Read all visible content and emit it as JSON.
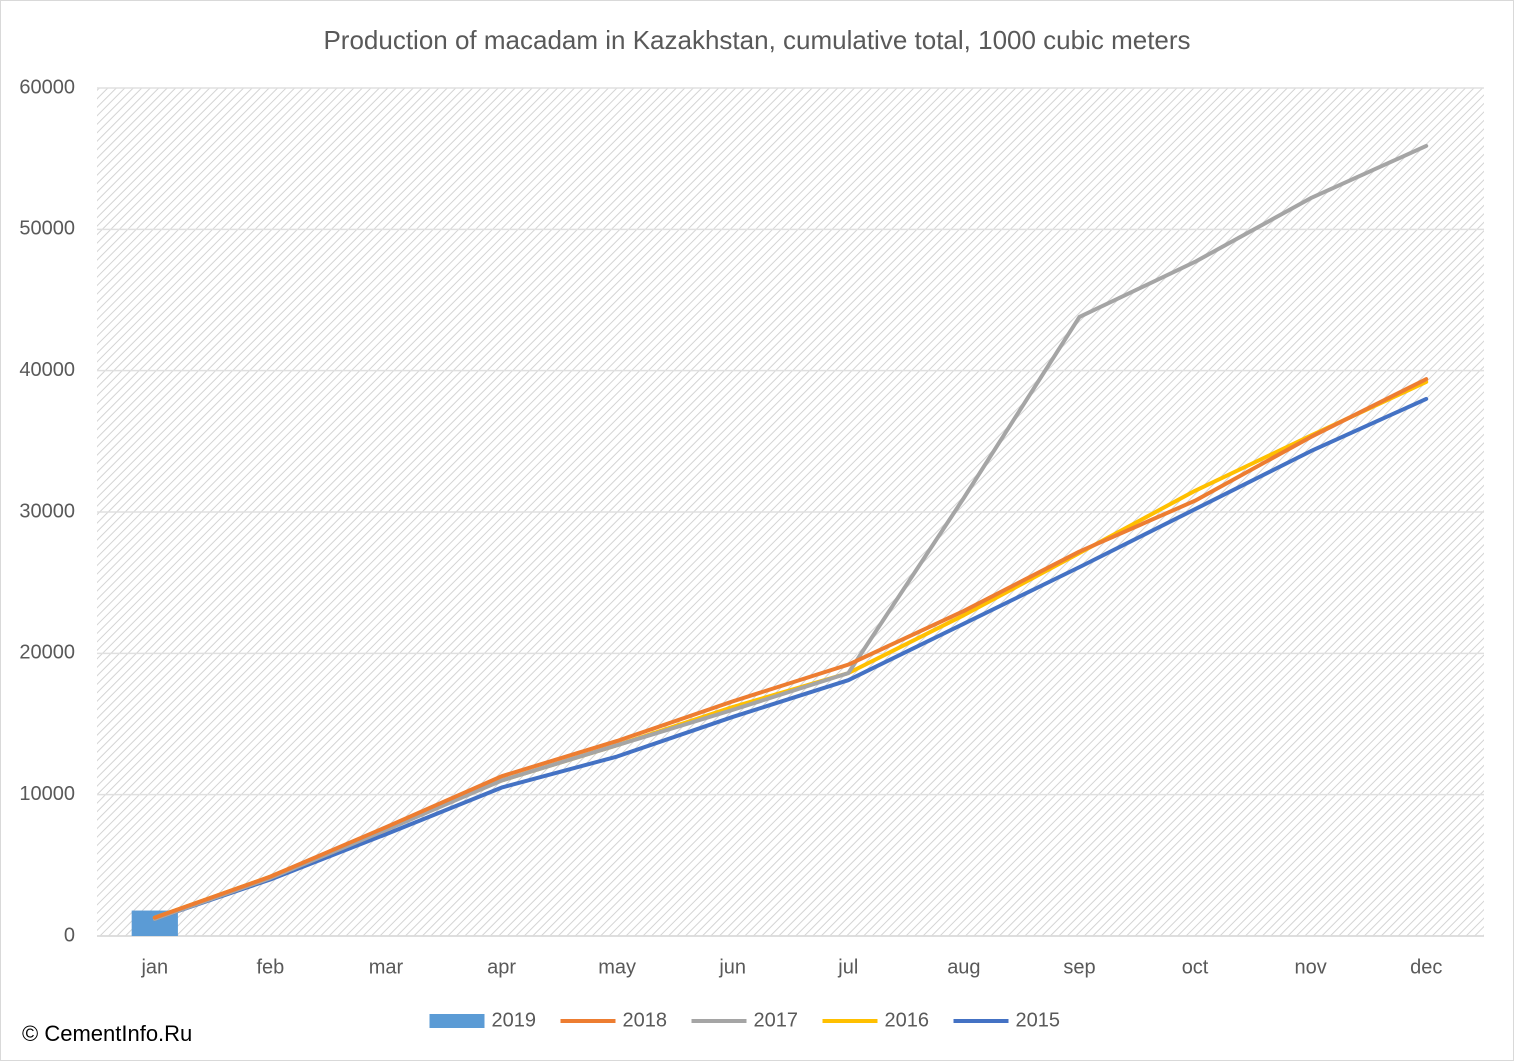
{
  "chart_data": {
    "type": "line",
    "title": "Production of macadam in Kazakhstan, cumulative total, 1000 cubic meters",
    "watermark": "© CementInfo.Ru",
    "categories": [
      "jan",
      "feb",
      "mar",
      "apr",
      "may",
      "jun",
      "jul",
      "aug",
      "sep",
      "oct",
      "nov",
      "dec"
    ],
    "series": [
      {
        "name": "2019",
        "type": "bar",
        "color": "#5b9bd5",
        "values": [
          1800,
          null,
          null,
          null,
          null,
          null,
          null,
          null,
          null,
          null,
          null,
          null
        ]
      },
      {
        "name": "2018",
        "type": "line",
        "color": "#ed7d31",
        "values": [
          1300,
          4200,
          7700,
          11300,
          13800,
          16600,
          19200,
          23000,
          27200,
          30800,
          35300,
          39400
        ]
      },
      {
        "name": "2017",
        "type": "line",
        "color": "#a5a5a5",
        "values": [
          1200,
          4100,
          7500,
          11000,
          13500,
          16000,
          18600,
          31000,
          43800,
          47700,
          52200,
          55900
        ]
      },
      {
        "name": "2016",
        "type": "line",
        "color": "#ffc000",
        "values": [
          1300,
          4200,
          7600,
          11000,
          13500,
          16200,
          18600,
          22700,
          27100,
          31500,
          35400,
          39200
        ]
      },
      {
        "name": "2015",
        "type": "line",
        "color": "#4472c4",
        "values": [
          1200,
          4000,
          7200,
          10500,
          12700,
          15500,
          18100,
          22100,
          26100,
          30200,
          34300,
          38000
        ]
      }
    ],
    "ylim": [
      0,
      60000
    ],
    "yticks": [
      0,
      10000,
      20000,
      30000,
      40000,
      50000,
      60000
    ],
    "grid": true,
    "legend": "bottom"
  }
}
